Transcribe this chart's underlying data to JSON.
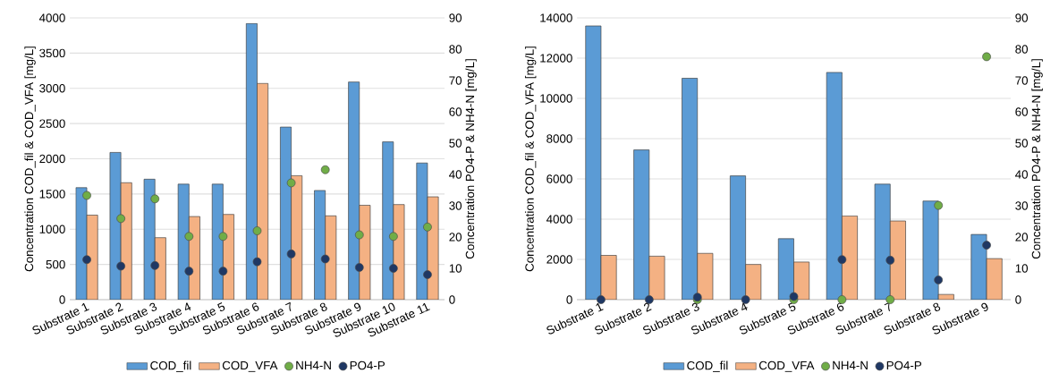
{
  "chart_data": [
    {
      "type": "bar",
      "categories": [
        "Substrate 1",
        "Substrate 2",
        "Substrate 3",
        "Substrate 4",
        "Substrate 5",
        "Substrate 6",
        "Substrate 7",
        "Substrate 8",
        "Substrate 9",
        "Substrate 10",
        "Substrate 11"
      ],
      "ylabel": "Concentration COD_fil & COD_VFA [mg/L]",
      "y2label": "Concentration PO4-P & NH4-N [mg/L]",
      "ylim": [
        0,
        4000
      ],
      "yticks": [
        0,
        500,
        1000,
        1500,
        2000,
        2500,
        3000,
        3500,
        4000
      ],
      "y2lim": [
        0,
        90
      ],
      "y2ticks": [
        0,
        10,
        20,
        30,
        40,
        50,
        60,
        70,
        80,
        90
      ],
      "grid": "y",
      "legend": "bottom",
      "marker": "circle",
      "series": [
        {
          "name": "COD_fil",
          "color": "#5b9bd5",
          "values": [
            1590,
            2090,
            1710,
            1640,
            1640,
            3920,
            2450,
            1550,
            3090,
            2240,
            1940
          ]
        },
        {
          "name": "COD_VFA",
          "color": "#f4b183",
          "values": [
            1200,
            1660,
            880,
            1180,
            1210,
            3070,
            1760,
            1190,
            1340,
            1350,
            1460
          ]
        },
        {
          "name": "NH4-N",
          "type": "scatter",
          "axis": "y2",
          "color": "#70ad47",
          "values": [
            33.3,
            25.9,
            32.2,
            20.2,
            20.2,
            22,
            37.3,
            41.5,
            20.7,
            20.2,
            23.2
          ]
        },
        {
          "name": "PO4-P",
          "type": "scatter",
          "axis": "y2",
          "color": "#1f3864",
          "values": [
            12.8,
            10.7,
            10.9,
            9.1,
            9.1,
            12.1,
            14.6,
            13,
            10.3,
            10,
            8
          ]
        }
      ]
    },
    {
      "type": "bar",
      "categories": [
        "Substrate 1",
        "Substrate 2",
        "Substrate 3",
        "Substrate 4",
        "Substrate 5",
        "Substrate 6",
        "Substrate 7",
        "Substrate 8",
        "Substrate 9"
      ],
      "ylabel": "Concentration COD_fil & COD_VFA [mg/L]",
      "y2label": "Concentration PO4-P & NH4-N [mg/L]",
      "ylim": [
        0,
        14000
      ],
      "yticks": [
        0,
        2000,
        4000,
        6000,
        8000,
        10000,
        12000,
        14000
      ],
      "y2lim": [
        0,
        90
      ],
      "y2ticks": [
        0,
        10,
        20,
        30,
        40,
        50,
        60,
        70,
        80,
        90
      ],
      "grid": "y",
      "legend": "bottom",
      "marker": "circle",
      "series": [
        {
          "name": "COD_fil",
          "color": "#5b9bd5",
          "values": [
            13600,
            7440,
            11000,
            6150,
            3030,
            11290,
            5740,
            4900,
            3240
          ]
        },
        {
          "name": "COD_VFA",
          "color": "#f4b183",
          "values": [
            2200,
            2160,
            2300,
            1750,
            1870,
            4160,
            3910,
            260,
            2040
          ]
        },
        {
          "name": "NH4-N",
          "type": "scatter",
          "axis": "y2",
          "color": "#70ad47",
          "values": [
            null,
            null,
            0,
            null,
            0,
            0,
            0,
            30.1,
            77.6
          ]
        },
        {
          "name": "PO4-P",
          "type": "scatter",
          "axis": "y2",
          "color": "#1f3864",
          "values": [
            0,
            0,
            0.8,
            0,
            1,
            12.8,
            12.6,
            6.3,
            17.4
          ]
        }
      ]
    }
  ]
}
